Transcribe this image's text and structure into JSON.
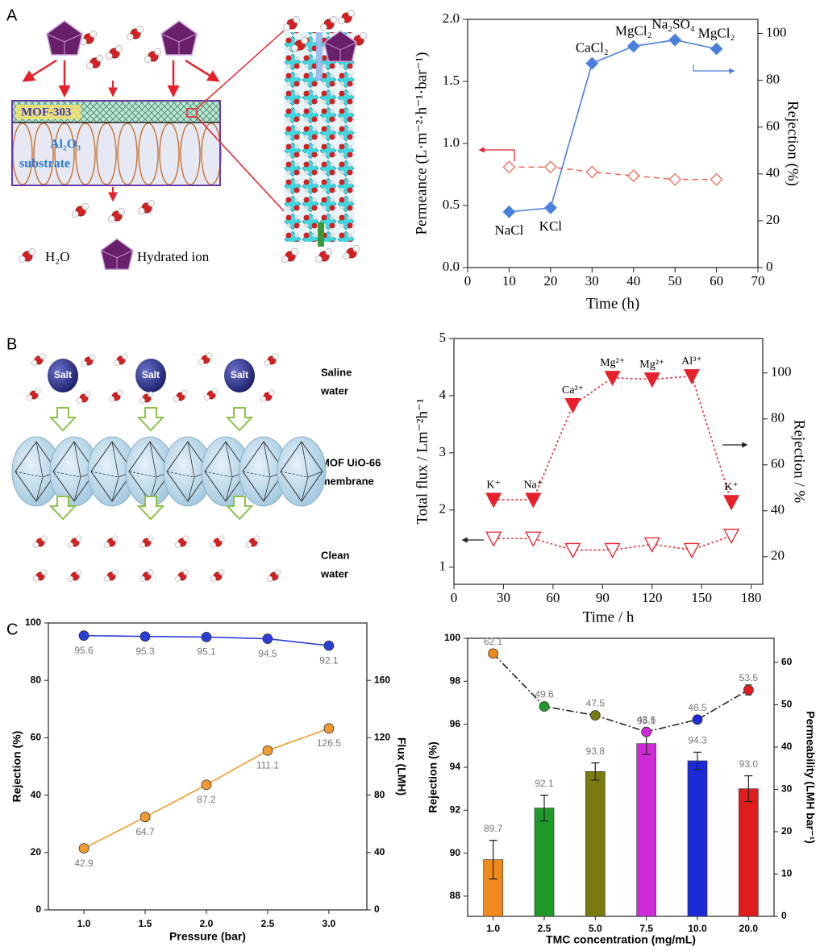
{
  "panel_labels": [
    "A",
    "B",
    "C"
  ],
  "diagram_a": {
    "layer": "MOF-303",
    "substrate": [
      "Al₂O₃",
      "substrate"
    ],
    "legend": [
      "H₂O",
      "Hydrated ion"
    ]
  },
  "diagram_b": {
    "salt": [
      "Salt",
      "Salt",
      "Salt"
    ],
    "feed": [
      "Saline",
      "water"
    ],
    "membrane": [
      "MOF UiO-66",
      "membrane"
    ],
    "permeate": [
      "Clean",
      "water"
    ]
  },
  "chart_data": [
    {
      "type": "line",
      "x": [
        10,
        20,
        30,
        40,
        50,
        60
      ],
      "xlabel": "Time (h)",
      "ylabel": "Permeance (L·m⁻²·h⁻¹·bar⁻¹)",
      "y2label": "Rejection (%)",
      "xlim": [
        0,
        70
      ],
      "xticks": [
        0,
        10,
        20,
        30,
        40,
        50,
        60,
        70
      ],
      "ylim": [
        0,
        2
      ],
      "yticks": [
        {
          "value": 0,
          "label": "0.0"
        },
        0.5,
        {
          "value": 1,
          "label": "1.0"
        },
        1.5,
        {
          "value": 2,
          "label": "2.0"
        }
      ],
      "y2lim": [
        0,
        106
      ],
      "y2ticks": [
        0,
        20,
        40,
        60,
        80,
        100
      ],
      "series": [
        {
          "color": "#ef6a5a",
          "marker": "diamond-open",
          "line_style": "dashed",
          "values": [
            0.81,
            0.81,
            0.77,
            0.74,
            0.71,
            0.71
          ]
        },
        {
          "color": "#4a7fe0",
          "marker": "diamond",
          "line_style": "solid",
          "axis": "y2",
          "values": [
            23.8,
            25.5,
            87.2,
            94.5,
            97.2,
            93.4
          ],
          "point_labels": [
            "NaCl",
            "KCl",
            "CaCl₂",
            "MgCl₂",
            "Na₂SO₄",
            "MgCl₂"
          ]
        }
      ]
    },
    {
      "type": "line",
      "x": [
        24,
        48,
        72,
        96,
        120,
        144,
        168
      ],
      "xlabel": "Time / h",
      "ylabel": "Total flux / Lm⁻²h⁻¹",
      "y2label": "Rejection / %",
      "xlim": [
        0,
        187
      ],
      "xticks": [
        0,
        30,
        60,
        90,
        120,
        150,
        180
      ],
      "ylim": [
        0.7,
        5
      ],
      "yticks": [
        1,
        2,
        3,
        4,
        5
      ],
      "y2lim": [
        8,
        115
      ],
      "y2ticks": [
        20,
        40,
        60,
        80,
        100
      ],
      "series": [
        {
          "color": "#e8202a",
          "marker": "tri-open",
          "line_style": "dotted",
          "values": [
            1.5,
            1.5,
            1.3,
            1.3,
            1.4,
            1.3,
            1.55
          ]
        },
        {
          "color": "#e8202a",
          "marker": "tri",
          "line_style": "dotted",
          "axis": "y2",
          "values": [
            44.8,
            44.8,
            86,
            97.9,
            97.2,
            98.6,
            43.8
          ],
          "point_labels": [
            "K⁺",
            "Na⁺",
            "Ca²⁺",
            "Mg²⁺",
            "Mg²⁺",
            "Al³⁺",
            "K⁺"
          ]
        }
      ]
    },
    {
      "type": "line",
      "x": [
        1,
        1.5,
        2,
        2.5,
        3
      ],
      "xlabel": "Pressure (bar)",
      "ylabel": "Rejection (%)",
      "y2label": "Flux (LMH)",
      "xlim": [
        0.71,
        3.31
      ],
      "xticks": [
        {
          "value": 1,
          "label": "1.0"
        },
        1.5,
        {
          "value": 2,
          "label": "2.0"
        },
        2.5,
        {
          "value": 3,
          "label": "3.0"
        }
      ],
      "ylim": [
        0,
        100
      ],
      "yticks": [
        0,
        20,
        40,
        60,
        80,
        100
      ],
      "y2lim": [
        0,
        200
      ],
      "y2ticks": [
        0,
        40,
        80,
        120,
        160
      ],
      "data_labels": true,
      "series": [
        {
          "color": "#2b3fd8",
          "marker": "circle",
          "line_style": "solid",
          "values": [
            95.6,
            95.3,
            95.1,
            94.5,
            92.1
          ]
        },
        {
          "color": "#f29a2e",
          "marker": "circle",
          "line_style": "solid",
          "axis": "y2",
          "values": [
            42.9,
            64.7,
            87.2,
            111.1,
            126.5
          ]
        }
      ]
    },
    {
      "type": "bar",
      "categories": [
        "1.0",
        "2.5",
        "5.0",
        "7.5",
        "10.0",
        "20.0"
      ],
      "xlabel": "TMC concentration (mg/mL)",
      "ylabel": "Rejection (%)",
      "y2label": "Permeability (LMH bar⁻¹)",
      "ylim": [
        87.06,
        100
      ],
      "yticks": [
        88,
        90,
        92,
        94,
        96,
        98,
        100
      ],
      "y2lim": [
        0,
        65.7
      ],
      "y2ticks": [
        0,
        10,
        20,
        30,
        40,
        50,
        60
      ],
      "data_labels": true,
      "series": [
        {
          "type": "bar",
          "colors": [
            "#f08a1c",
            "#1f9a2a",
            "#7a7a10",
            "#d02ad8",
            "#1c2ad8",
            "#e01c1c"
          ],
          "values": [
            89.7,
            92.1,
            93.8,
            95.1,
            94.3,
            93.0
          ],
          "value_labels": [
            "89.7",
            "92.1",
            "93.8",
            "95.1",
            "94.3",
            "93.0"
          ],
          "errors": [
            0.9,
            0.6,
            0.4,
            0.5,
            0.4,
            0.6
          ]
        },
        {
          "type": "line",
          "axis": "y2",
          "color": "#222222",
          "marker": "circle",
          "line_style": "dashdot",
          "colors": [
            "#f08a1c",
            "#1f9a2a",
            "#7a7a10",
            "#d02ad8",
            "#1c2ad8",
            "#e01c1c"
          ],
          "values": [
            62.1,
            49.6,
            47.5,
            43.6,
            46.5,
            53.5
          ],
          "errors": [
            0.5,
            0.5,
            0.5,
            0.8,
            0.5,
            1.2
          ]
        }
      ]
    }
  ]
}
